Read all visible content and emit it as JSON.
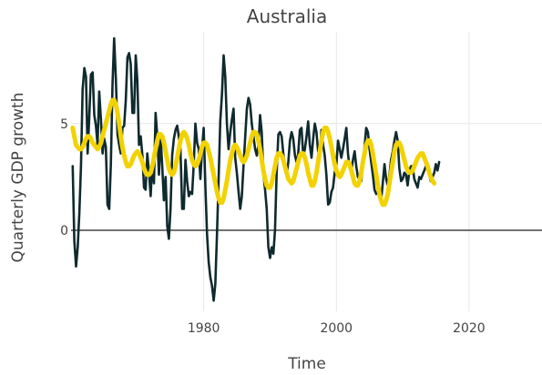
{
  "chart_data": {
    "type": "line",
    "title": "Australia",
    "xlabel": "Time",
    "ylabel": "Quarterly GDP growth",
    "xlim": [
      1960.0,
      2031.0
    ],
    "ylim": [
      -3.8,
      9.3
    ],
    "x_ticks": [
      1980,
      2000,
      2020
    ],
    "y_ticks": [
      0,
      5
    ],
    "grid": true,
    "legend": "none",
    "colors": {
      "actual": "#0f2a2e",
      "fitted": "#f2d200",
      "zero_line": "#444444",
      "grid": "#e6e6e6"
    },
    "series": [
      {
        "color": "#0f2a2e",
        "x_start": 1960.25,
        "x_step": 0.25,
        "values": [
          3.0,
          -0.5,
          -1.7,
          -0.8,
          0.8,
          3.0,
          6.6,
          7.6,
          7.2,
          3.6,
          5.3,
          7.3,
          7.4,
          5.4,
          4.9,
          4.0,
          6.5,
          5.2,
          3.6,
          4.3,
          3.9,
          1.2,
          1.0,
          3.1,
          6.8,
          9.0,
          7.1,
          4.5,
          4.0,
          3.6,
          4.8,
          4.9,
          6.1,
          8.1,
          8.3,
          7.8,
          5.5,
          5.5,
          8.2,
          7.0,
          4.0,
          4.4,
          3.5,
          2.0,
          1.9,
          3.6,
          2.7,
          1.6,
          3.2,
          2.2,
          5.5,
          4.4,
          2.6,
          4.4,
          3.0,
          1.4,
          2.5,
          0.2,
          -0.4,
          1.0,
          3.5,
          4.3,
          4.7,
          4.9,
          4.4,
          3.8,
          1.0,
          1.0,
          3.3,
          2.3,
          1.6,
          1.8,
          1.7,
          3.1,
          5.0,
          4.1,
          3.8,
          2.4,
          3.8,
          4.8,
          2.0,
          -0.2,
          -1.5,
          -2.2,
          -2.6,
          -3.3,
          -2.5,
          -0.2,
          2.4,
          5.1,
          6.4,
          8.2,
          7.2,
          5.0,
          3.8,
          4.6,
          5.2,
          5.7,
          3.4,
          2.7,
          1.8,
          1.0,
          1.6,
          3.0,
          4.3,
          5.7,
          6.2,
          5.9,
          5.0,
          4.4,
          3.8,
          3.5,
          4.0,
          5.4,
          4.6,
          2.6,
          1.9,
          1.0,
          -0.8,
          -1.3,
          -0.8,
          -1.1,
          0.0,
          2.7,
          4.5,
          4.6,
          4.4,
          3.6,
          2.8,
          2.6,
          3.2,
          4.2,
          4.6,
          4.3,
          3.5,
          3.2,
          3.6,
          4.7,
          4.8,
          3.5,
          3.8,
          4.4,
          5.1,
          4.0,
          3.4,
          4.3,
          5.0,
          4.6,
          3.7,
          3.5,
          4.7,
          4.0,
          3.5,
          2.6,
          1.2,
          1.3,
          1.8,
          2.0,
          2.7,
          3.1,
          4.2,
          3.8,
          3.4,
          3.8,
          4.3,
          4.8,
          3.6,
          2.9,
          2.8,
          3.3,
          3.7,
          3.0,
          2.5,
          2.4,
          2.3,
          3.1,
          3.9,
          4.8,
          4.6,
          3.8,
          3.2,
          2.6,
          1.9,
          1.7,
          1.8,
          1.5,
          1.4,
          2.2,
          3.1,
          2.4,
          2.1,
          2.6,
          3.3,
          3.7,
          4.2,
          4.6,
          4.2,
          2.9,
          2.3,
          2.4,
          2.7,
          2.6,
          2.1,
          2.8,
          3.0,
          3.0,
          2.4,
          2.2,
          2.0,
          2.5,
          2.4,
          2.6,
          2.8,
          3.0,
          2.9,
          2.6,
          2.3,
          2.5,
          2.7,
          3.1,
          2.8,
          3.2
        ]
      },
      {
        "color": "#f2d200",
        "x_start": 1960.25,
        "x_step": 0.25,
        "values": [
          4.8,
          4.4,
          4.0,
          3.9,
          3.8,
          3.8,
          3.9,
          4.1,
          4.3,
          4.4,
          4.4,
          4.3,
          4.1,
          4.0,
          3.9,
          3.8,
          3.9,
          4.1,
          4.4,
          4.7,
          5.0,
          5.3,
          5.6,
          5.9,
          6.1,
          6.1,
          5.9,
          5.5,
          5.0,
          4.4,
          3.9,
          3.5,
          3.2,
          3.0,
          3.0,
          3.1,
          3.3,
          3.5,
          3.6,
          3.7,
          3.6,
          3.4,
          3.2,
          2.9,
          2.7,
          2.6,
          2.6,
          2.7,
          3.0,
          3.4,
          3.8,
          4.2,
          4.5,
          4.5,
          4.4,
          4.1,
          3.7,
          3.3,
          2.9,
          2.7,
          2.6,
          2.7,
          3.0,
          3.4,
          3.8,
          4.2,
          4.5,
          4.6,
          4.5,
          4.3,
          4.0,
          3.6,
          3.3,
          3.1,
          3.0,
          3.1,
          3.3,
          3.6,
          3.9,
          4.1,
          4.1,
          4.0,
          3.7,
          3.4,
          3.0,
          2.6,
          2.2,
          1.8,
          1.5,
          1.3,
          1.3,
          1.5,
          1.9,
          2.3,
          2.8,
          3.3,
          3.6,
          3.9,
          4.0,
          3.9,
          3.7,
          3.5,
          3.3,
          3.2,
          3.3,
          3.5,
          3.8,
          4.1,
          4.4,
          4.6,
          4.6,
          4.5,
          4.2,
          3.8,
          3.3,
          2.8,
          2.4,
          2.1,
          2.0,
          2.0,
          2.2,
          2.6,
          3.0,
          3.4,
          3.6,
          3.6,
          3.5,
          3.3,
          3.0,
          2.7,
          2.4,
          2.3,
          2.2,
          2.3,
          2.6,
          2.9,
          3.2,
          3.5,
          3.6,
          3.6,
          3.4,
          3.1,
          2.7,
          2.4,
          2.1,
          2.1,
          2.3,
          2.7,
          3.2,
          3.7,
          4.2,
          4.6,
          4.8,
          4.8,
          4.6,
          4.3,
          3.9,
          3.5,
          3.1,
          2.8,
          2.6,
          2.5,
          2.6,
          2.8,
          3.0,
          3.2,
          3.2,
          3.1,
          2.8,
          2.5,
          2.2,
          2.1,
          2.1,
          2.3,
          2.7,
          3.2,
          3.6,
          4.0,
          4.2,
          4.2,
          4.0,
          3.6,
          3.1,
          2.6,
          2.1,
          1.7,
          1.4,
          1.2,
          1.2,
          1.4,
          1.7,
          2.2,
          2.7,
          3.2,
          3.7,
          4.0,
          4.1,
          4.1,
          3.9,
          3.6,
          3.3,
          3.0,
          2.8,
          2.7,
          2.7,
          2.8,
          3.0,
          3.2,
          3.4,
          3.5,
          3.6,
          3.6,
          3.4,
          3.2,
          3.0,
          2.7,
          2.5,
          2.3,
          2.2
        ]
      }
    ]
  }
}
